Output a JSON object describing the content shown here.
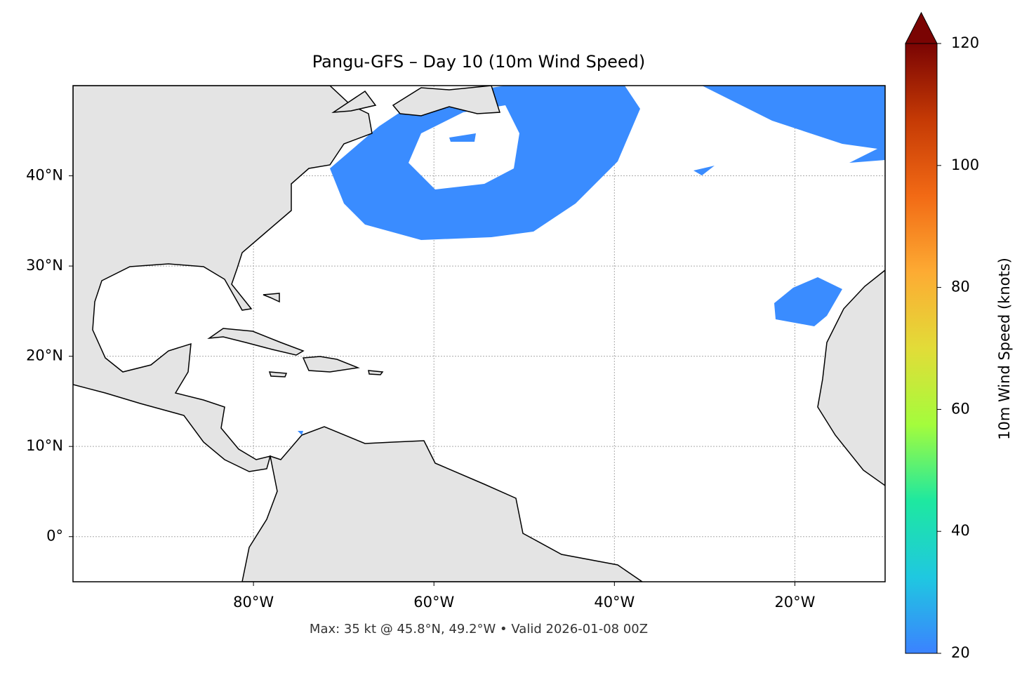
{
  "chart_data": {
    "type": "map",
    "title": "Pangu-GFS – Day 10 (10m Wind Speed)",
    "caption": "Max: 35 kt @ 45.8°N, 49.2°W • Valid 2026-01-08 00Z",
    "xlim": [
      -100,
      -10
    ],
    "ylim": [
      -5,
      50
    ],
    "xticks": [
      {
        "value": -80,
        "label": "80°W"
      },
      {
        "value": -60,
        "label": "60°W"
      },
      {
        "value": -40,
        "label": "40°W"
      },
      {
        "value": -20,
        "label": "20°W"
      }
    ],
    "yticks": [
      {
        "value": 0,
        "label": "0°"
      },
      {
        "value": 10,
        "label": "10°N"
      },
      {
        "value": 20,
        "label": "20°N"
      },
      {
        "value": 30,
        "label": "30°N"
      },
      {
        "value": 40,
        "label": "40°N"
      }
    ],
    "grid": true,
    "colorbar": {
      "label": "10m Wind Speed (knots)",
      "lim": [
        20,
        120
      ],
      "ticks": [
        20,
        40,
        60,
        80,
        100,
        120
      ],
      "colormap": [
        "#3b82ff",
        "#1fc8e0",
        "#1ee8a0",
        "#a4fc3c",
        "#e2dc38",
        "#fdab33",
        "#f26a15",
        "#c53a05",
        "#7a0403"
      ]
    }
  }
}
